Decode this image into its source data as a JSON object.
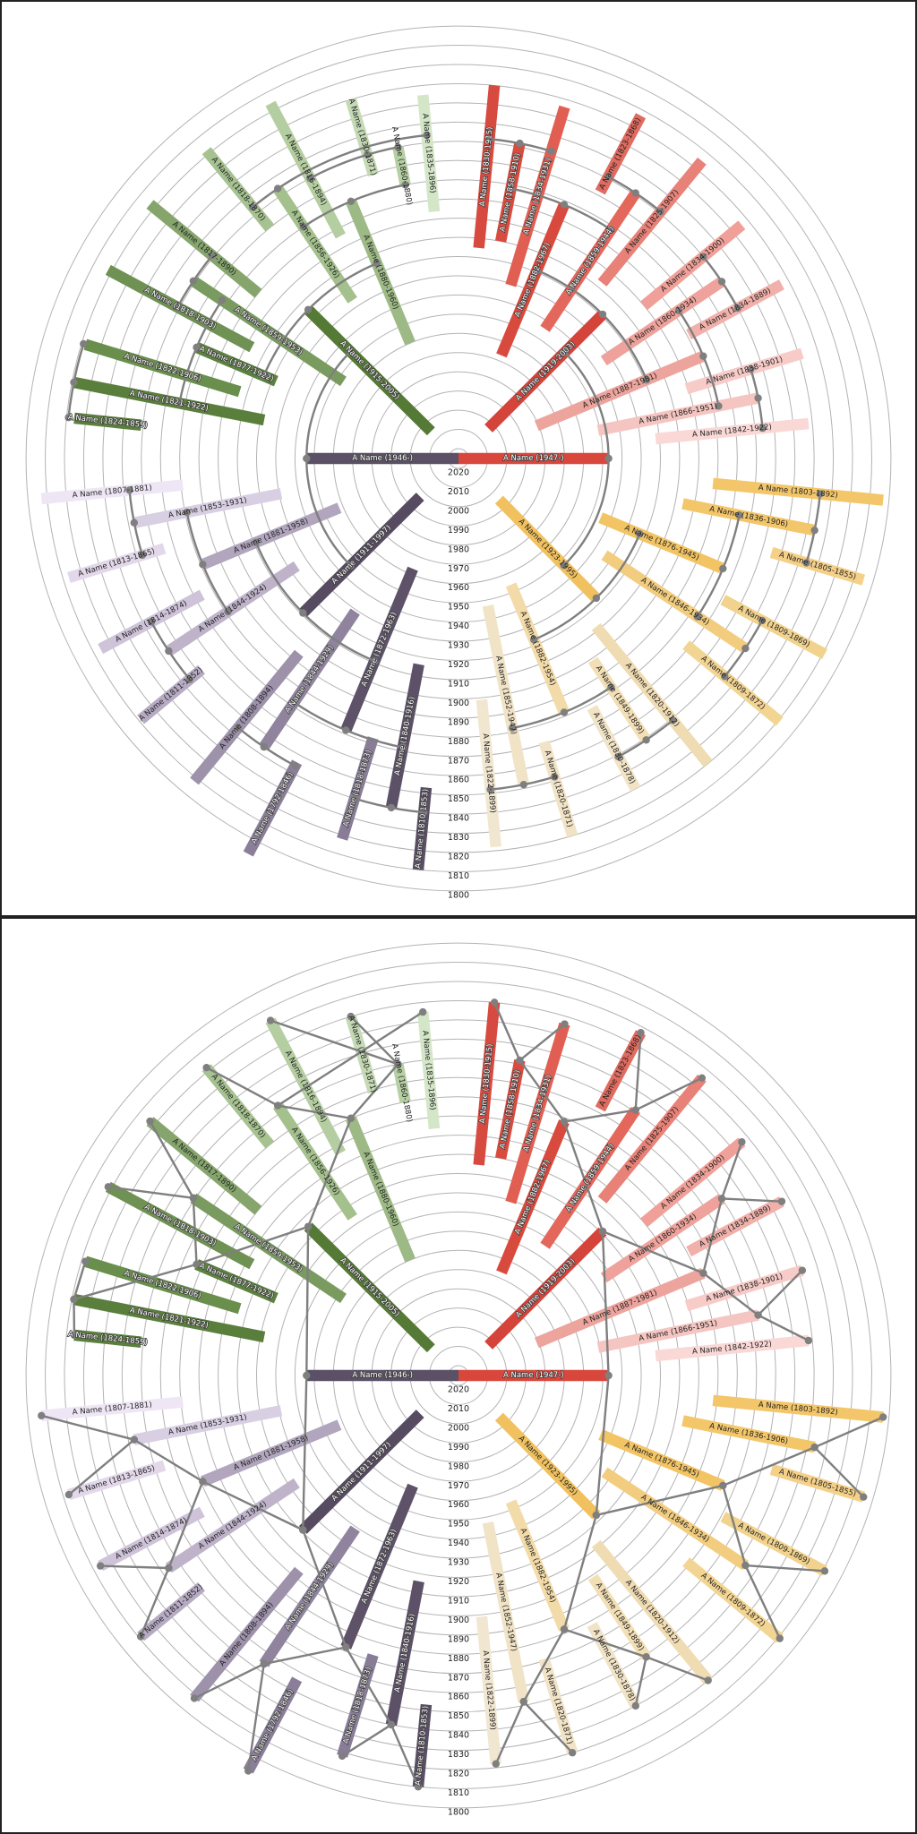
{
  "panels": [
    {
      "connector_style": "arc"
    },
    {
      "connector_style": "straight"
    }
  ],
  "year_labels": [
    "2020",
    "2010",
    "2000",
    "1990",
    "1980",
    "1970",
    "1960",
    "1950",
    "1940",
    "1930",
    "1920",
    "1910",
    "1900",
    "1890",
    "1880",
    "1870",
    "1860",
    "1850",
    "1840",
    "1830",
    "1820",
    "1810",
    "1800"
  ],
  "colors": {
    "connector": "#7f7f7f",
    "grid": "#b3b3b3"
  },
  "persons": [
    {
      "id": "r1947",
      "label": "A Name (1947-)",
      "birth": 1947,
      "death": null,
      "color": "#d9463b",
      "parents": [
        "r1919",
        "y1923"
      ]
    },
    {
      "id": "p1946",
      "label": "A Name (1946-)",
      "birth": 1946,
      "death": null,
      "color": "#5b5066",
      "parents": [
        "g1915",
        "p1911"
      ]
    },
    {
      "id": "g1915",
      "label": "A Name (1915-2005)",
      "birth": 1915,
      "death": 2005,
      "color": "#557a35",
      "parents": [
        "g1880",
        "g1877"
      ]
    },
    {
      "id": "g1880",
      "label": "A Name (1880-1960)",
      "birth": 1880,
      "death": 1960,
      "color": "#9dba86",
      "parents": [
        "g1856",
        "g1860"
      ]
    },
    {
      "id": "g1877",
      "label": "A Name (1877-1922)",
      "birth": 1877,
      "death": 1922,
      "color": "#5c8240",
      "parents": [
        "g1859",
        "g1821"
      ]
    },
    {
      "id": "g1856",
      "label": "A Name (1856-1926)",
      "birth": 1856,
      "death": 1926,
      "color": "#a3c08d",
      "parents": [
        "g1818a",
        "g1835"
      ]
    },
    {
      "id": "g1860",
      "label": "A Name (1860-1880)",
      "birth": 1860,
      "death": 1880,
      "color": "#b6cfa3",
      "parents": [
        "g1816",
        "g1830"
      ]
    },
    {
      "id": "g1859",
      "label": "A Name (1859-1953)",
      "birth": 1859,
      "death": 1953,
      "color": "#7a9b60",
      "parents": [
        "g1817",
        "g1818b"
      ]
    },
    {
      "id": "g1821",
      "label": "A Name (1821-1922)",
      "birth": 1821,
      "death": 1922,
      "color": "#5a7e3b",
      "parents": [
        "g1822",
        "g1824"
      ]
    },
    {
      "id": "g1818a",
      "label": "A Name (1818-1870)",
      "birth": 1818,
      "death": 1870,
      "color": "#a6c291",
      "parents": []
    },
    {
      "id": "g1816",
      "label": "A Name (1816-1894)",
      "birth": 1816,
      "death": 1894,
      "color": "#b5cea1",
      "parents": []
    },
    {
      "id": "g1830",
      "label": "A Name (1830-1871)",
      "birth": 1830,
      "death": 1871,
      "color": "#c4d9b4",
      "parents": []
    },
    {
      "id": "g1835",
      "label": "A Name (1835-1896)",
      "birth": 1835,
      "death": 1896,
      "color": "#d4e6c8",
      "parents": []
    },
    {
      "id": "g1817",
      "label": "A Name (1817-1890)",
      "birth": 1817,
      "death": 1890,
      "color": "#86a56d",
      "parents": []
    },
    {
      "id": "g1818b",
      "label": "A Name (1818-1903)",
      "birth": 1818,
      "death": 1903,
      "color": "#6f9153",
      "parents": []
    },
    {
      "id": "g1822",
      "label": "A Name (1822-1906)",
      "birth": 1822,
      "death": 1906,
      "color": "#6a8f4c",
      "parents": []
    },
    {
      "id": "g1824",
      "label": "A Name (1824-1859)",
      "birth": 1824,
      "death": 1859,
      "color": "#5b7f3c",
      "parents": []
    },
    {
      "id": "r1919",
      "label": "A Name (1919-2003)",
      "birth": 1919,
      "death": 2003,
      "color": "#d5443a",
      "parents": [
        "r1882",
        "r1887"
      ]
    },
    {
      "id": "r1882",
      "label": "A Name (1882-1967)",
      "birth": 1882,
      "death": 1967,
      "color": "#d84a3d",
      "parents": [
        "r1858",
        "r1859"
      ]
    },
    {
      "id": "r1887",
      "label": "A Name (1887-1981)",
      "birth": 1887,
      "death": 1981,
      "color": "#eca49d",
      "parents": [
        "r1860",
        "r1866"
      ]
    },
    {
      "id": "r1858",
      "label": "A Name (1858-1910)",
      "birth": 1858,
      "death": 1910,
      "color": "#d84c3f",
      "parents": [
        "r1830",
        "r1834a"
      ]
    },
    {
      "id": "r1859",
      "label": "A Name (1859-1944)",
      "birth": 1859,
      "death": 1944,
      "color": "#e4675c",
      "parents": [
        "r1823",
        "r1825"
      ]
    },
    {
      "id": "r1830",
      "label": "A Name (1830-1915)",
      "birth": 1830,
      "death": 1915,
      "color": "#d64a3f",
      "parents": []
    },
    {
      "id": "r1834a",
      "label": "A Name (1834-1931)",
      "birth": 1834,
      "death": 1931,
      "color": "#e15f52",
      "parents": []
    },
    {
      "id": "r1823",
      "label": "A Name (1823-1868)",
      "birth": 1823,
      "death": 1868,
      "color": "#e06b60",
      "parents": []
    },
    {
      "id": "r1825",
      "label": "A Name (1825-1907)",
      "birth": 1825,
      "death": 1907,
      "color": "#e88278",
      "parents": []
    },
    {
      "id": "r1860",
      "label": "A Name (1860-1934)",
      "birth": 1860,
      "death": 1934,
      "color": "#eea29b",
      "parents": [
        "r1834b",
        "r1834c"
      ]
    },
    {
      "id": "r1866",
      "label": "A Name (1866-1951)",
      "birth": 1866,
      "death": 1951,
      "color": "#f5c5c1",
      "parents": [
        "r1838",
        "r1842"
      ]
    },
    {
      "id": "r1834b",
      "label": "A Name (1834-1900)",
      "birth": 1834,
      "death": 1900,
      "color": "#f0a098",
      "parents": []
    },
    {
      "id": "r1834c",
      "label": "A Name (1834-1889)",
      "birth": 1834,
      "death": 1889,
      "color": "#f1b0aa",
      "parents": []
    },
    {
      "id": "r1838",
      "label": "A Name (1838-1901)",
      "birth": 1838,
      "death": 1901,
      "color": "#f7cbc8",
      "parents": []
    },
    {
      "id": "r1842",
      "label": "A Name (1842-1922)",
      "birth": 1842,
      "death": 1922,
      "color": "#f9d8d6",
      "parents": []
    },
    {
      "id": "p1911",
      "label": "A Name (1911-1997)",
      "birth": 1911,
      "death": 1997,
      "color": "#574b62",
      "parents": [
        "p1881",
        "p1872"
      ]
    },
    {
      "id": "p1881",
      "label": "A Name (1881-1958)",
      "birth": 1881,
      "death": 1958,
      "color": "#b1a6bd",
      "parents": [
        "p1853",
        "p1844a"
      ]
    },
    {
      "id": "p1872",
      "label": "A Name (1872-1963)",
      "birth": 1872,
      "death": 1963,
      "color": "#5e5269",
      "parents": [
        "p1844b",
        "p1840"
      ]
    },
    {
      "id": "p1853",
      "label": "A Name (1853-1931)",
      "birth": 1853,
      "death": 1931,
      "color": "#d9cfe3",
      "parents": [
        "p1807",
        "p1813"
      ]
    },
    {
      "id": "p1844a",
      "label": "A Name (1844-1924)",
      "birth": 1844,
      "death": 1924,
      "color": "#bfb3ca",
      "parents": [
        "p1814",
        "p1811"
      ]
    },
    {
      "id": "p1807",
      "label": "A Name (1807-1881)",
      "birth": 1807,
      "death": 1881,
      "color": "#efe6f5",
      "parents": []
    },
    {
      "id": "p1813",
      "label": "A Name (1813-1865)",
      "birth": 1813,
      "death": 1865,
      "color": "#e2d8ea",
      "parents": []
    },
    {
      "id": "p1814",
      "label": "A Name (1814-1874)",
      "birth": 1814,
      "death": 1874,
      "color": "#cfc3d9",
      "parents": []
    },
    {
      "id": "p1811",
      "label": "A Name (1811-1852)",
      "birth": 1811,
      "death": 1852,
      "color": "#b7abc3",
      "parents": []
    },
    {
      "id": "p1844b",
      "label": "A Name (1844-1929)",
      "birth": 1844,
      "death": 1929,
      "color": "#8f839e",
      "parents": [
        "p1808",
        "p1792"
      ]
    },
    {
      "id": "p1840",
      "label": "A Name (1840-1916)",
      "birth": 1840,
      "death": 1916,
      "color": "#5d5168",
      "parents": [
        "p1818",
        "p1810"
      ]
    },
    {
      "id": "p1808",
      "label": "A Name (1808-1894)",
      "birth": 1808,
      "death": 1894,
      "color": "#9e92ab",
      "parents": []
    },
    {
      "id": "p1792",
      "label": "A Name (1792-1846)",
      "birth": 1792,
      "death": 1846,
      "color": "#8a7e98",
      "parents": []
    },
    {
      "id": "p1818",
      "label": "A Name (1818-1873)",
      "birth": 1818,
      "death": 1873,
      "color": "#887c96",
      "parents": []
    },
    {
      "id": "p1810",
      "label": "A Name (1810-1853)",
      "birth": 1810,
      "death": 1853,
      "color": "#5b4f66",
      "parents": []
    },
    {
      "id": "y1923",
      "label": "A Name (1923-1995)",
      "birth": 1923,
      "death": 1995,
      "color": "#f1c15f",
      "parents": [
        "y1876",
        "y1882"
      ]
    },
    {
      "id": "y1876",
      "label": "A Name (1876-1945)",
      "birth": 1876,
      "death": 1945,
      "color": "#f2c464",
      "parents": [
        "y1836",
        "y1846"
      ]
    },
    {
      "id": "y1882",
      "label": "A Name (1882-1954)",
      "birth": 1882,
      "death": 1954,
      "color": "#f2dba8",
      "parents": [
        "y1852",
        "y1849"
      ]
    },
    {
      "id": "y1836",
      "label": "A Name (1836-1906)",
      "birth": 1836,
      "death": 1906,
      "color": "#f3c66a",
      "parents": [
        "y1803",
        "y1805"
      ]
    },
    {
      "id": "y1846",
      "label": "A Name (1846-1934)",
      "birth": 1846,
      "death": 1934,
      "color": "#f2cd80",
      "parents": [
        "y1809a",
        "y1809b"
      ]
    },
    {
      "id": "y1803",
      "label": "A Name (1803-1892)",
      "birth": 1803,
      "death": 1892,
      "color": "#f3c66a",
      "parents": []
    },
    {
      "id": "y1805",
      "label": "A Name (1805-1855)",
      "birth": 1805,
      "death": 1855,
      "color": "#f4d088",
      "parents": []
    },
    {
      "id": "y1809a",
      "label": "A Name (1809-1869)",
      "birth": 1809,
      "death": 1869,
      "color": "#f2d38e",
      "parents": []
    },
    {
      "id": "y1809b",
      "label": "A Name (1809-1872)",
      "birth": 1809,
      "death": 1872,
      "color": "#f3d593",
      "parents": []
    },
    {
      "id": "y1852",
      "label": "A Name (1852-1947)",
      "birth": 1852,
      "death": 1947,
      "color": "#f1e3c6",
      "parents": [
        "y1822",
        "y1820a"
      ]
    },
    {
      "id": "y1849",
      "label": "A Name (1849-1899)",
      "birth": 1849,
      "death": 1899,
      "color": "#f2dfb5",
      "parents": [
        "y1820b",
        "y1830"
      ]
    },
    {
      "id": "y1822",
      "label": "A Name (1822-1899)",
      "birth": 1822,
      "death": 1899,
      "color": "#f1e6d0",
      "parents": []
    },
    {
      "id": "y1820a",
      "label": "A Name (1820-1871)",
      "birth": 1820,
      "death": 1871,
      "color": "#f1e3c6",
      "parents": []
    },
    {
      "id": "y1820b",
      "label": "A Name (1820-1912)",
      "birth": 1820,
      "death": 1912,
      "color": "#f0dcb3",
      "parents": []
    },
    {
      "id": "y1830",
      "label": "A Name (1830-1878)",
      "birth": 1830,
      "death": 1878,
      "color": "#f1e3c6",
      "parents": []
    }
  ]
}
